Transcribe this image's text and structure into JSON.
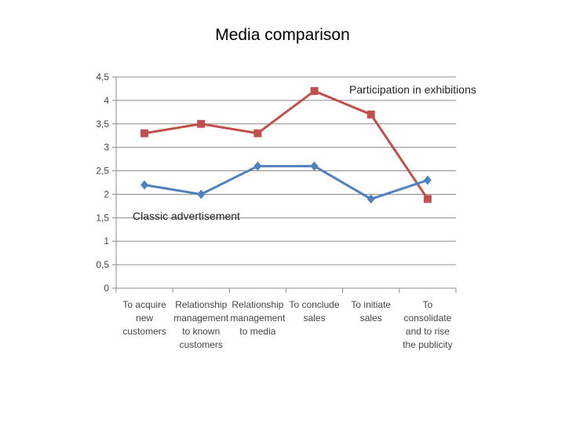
{
  "title": "Media comparison",
  "chart_data": {
    "type": "line",
    "title": "Media comparison",
    "categories": [
      [
        "To acquire",
        "new",
        "customers"
      ],
      [
        "Relationship",
        "management",
        "to known",
        "customers"
      ],
      [
        "Relationship",
        "management",
        "to media"
      ],
      [
        "To conclude",
        "sales"
      ],
      [
        "To initiate",
        "sales"
      ],
      [
        "To",
        "consolidate",
        "and to rise",
        "the publicity"
      ]
    ],
    "y_ticks": [
      "0",
      "0,5",
      "1",
      "1,5",
      "2",
      "2,5",
      "3",
      "3,5",
      "4",
      "4,5"
    ],
    "ylim": [
      0,
      4.5
    ],
    "grid": true,
    "series": [
      {
        "name": "Participation in exhibitions",
        "color": "#c0504d",
        "marker": "square",
        "values": [
          3.3,
          3.5,
          3.3,
          4.2,
          3.7,
          1.9
        ]
      },
      {
        "name": "Classic advertisement",
        "color": "#4f81bd",
        "marker": "diamond",
        "values": [
          2.2,
          2.0,
          2.6,
          2.6,
          1.9,
          2.3
        ]
      }
    ]
  }
}
